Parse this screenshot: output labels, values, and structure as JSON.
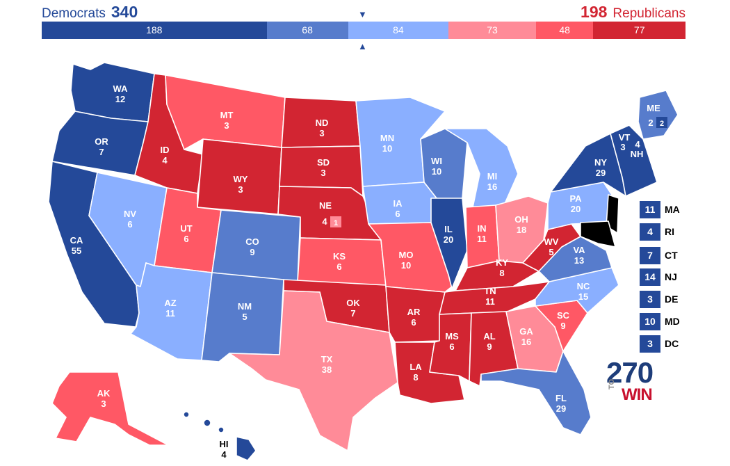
{
  "header": {
    "dem_name": "Democrats",
    "dem_total": "340",
    "rep_total": "198",
    "rep_name": "Republicans"
  },
  "colors": {
    "safe_d": "#244999",
    "likely_d": "#577ccc",
    "lean_d": "#8aafff",
    "lean_r": "#ff8b98",
    "likely_r": "#ff5865",
    "safe_r": "#d22532"
  },
  "bar": [
    {
      "label": "188",
      "value": 188,
      "category": "safe_d"
    },
    {
      "label": "68",
      "value": 68,
      "category": "likely_d"
    },
    {
      "label": "84",
      "value": 84,
      "category": "lean_d"
    },
    {
      "label": "73",
      "value": 73,
      "category": "lean_r"
    },
    {
      "label": "48",
      "value": 48,
      "category": "likely_r"
    },
    {
      "label": "77",
      "value": 77,
      "category": "safe_r"
    }
  ],
  "markers": {
    "down": "▼",
    "up": "▲"
  },
  "states": {
    "WA": {
      "abbr": "WA",
      "ev": "12",
      "category": "safe_d"
    },
    "OR": {
      "abbr": "OR",
      "ev": "7",
      "category": "safe_d"
    },
    "CA": {
      "abbr": "CA",
      "ev": "55",
      "category": "safe_d"
    },
    "NV": {
      "abbr": "NV",
      "ev": "6",
      "category": "lean_d"
    },
    "ID": {
      "abbr": "ID",
      "ev": "4",
      "category": "safe_r"
    },
    "MT": {
      "abbr": "MT",
      "ev": "3",
      "category": "likely_r"
    },
    "WY": {
      "abbr": "WY",
      "ev": "3",
      "category": "safe_r"
    },
    "UT": {
      "abbr": "UT",
      "ev": "6",
      "category": "likely_r"
    },
    "AZ": {
      "abbr": "AZ",
      "ev": "11",
      "category": "lean_d"
    },
    "CO": {
      "abbr": "CO",
      "ev": "9",
      "category": "likely_d"
    },
    "NM": {
      "abbr": "NM",
      "ev": "5",
      "category": "likely_d"
    },
    "ND": {
      "abbr": "ND",
      "ev": "3",
      "category": "safe_r"
    },
    "SD": {
      "abbr": "SD",
      "ev": "3",
      "category": "safe_r"
    },
    "NE": {
      "abbr": "NE",
      "ev": "4",
      "category": "safe_r",
      "district_ev": "1",
      "district_category": "lean_r"
    },
    "KS": {
      "abbr": "KS",
      "ev": "6",
      "category": "likely_r"
    },
    "OK": {
      "abbr": "OK",
      "ev": "7",
      "category": "safe_r"
    },
    "TX": {
      "abbr": "TX",
      "ev": "38",
      "category": "lean_r"
    },
    "MN": {
      "abbr": "MN",
      "ev": "10",
      "category": "lean_d"
    },
    "IA": {
      "abbr": "IA",
      "ev": "6",
      "category": "lean_d"
    },
    "MO": {
      "abbr": "MO",
      "ev": "10",
      "category": "likely_r"
    },
    "AR": {
      "abbr": "AR",
      "ev": "6",
      "category": "safe_r"
    },
    "LA": {
      "abbr": "LA",
      "ev": "8",
      "category": "safe_r"
    },
    "WI": {
      "abbr": "WI",
      "ev": "10",
      "category": "likely_d"
    },
    "IL": {
      "abbr": "IL",
      "ev": "20",
      "category": "safe_d"
    },
    "MI": {
      "abbr": "MI",
      "ev": "16",
      "category": "lean_d"
    },
    "IN": {
      "abbr": "IN",
      "ev": "11",
      "category": "likely_r"
    },
    "OH": {
      "abbr": "OH",
      "ev": "18",
      "category": "lean_r"
    },
    "KY": {
      "abbr": "KY",
      "ev": "8",
      "category": "safe_r"
    },
    "TN": {
      "abbr": "TN",
      "ev": "11",
      "category": "safe_r"
    },
    "MS": {
      "abbr": "MS",
      "ev": "6",
      "category": "safe_r"
    },
    "AL": {
      "abbr": "AL",
      "ev": "9",
      "category": "safe_r"
    },
    "GA": {
      "abbr": "GA",
      "ev": "16",
      "category": "lean_r"
    },
    "FL": {
      "abbr": "FL",
      "ev": "29",
      "category": "likely_d"
    },
    "SC": {
      "abbr": "SC",
      "ev": "9",
      "category": "likely_r"
    },
    "NC": {
      "abbr": "NC",
      "ev": "15",
      "category": "lean_d"
    },
    "VA": {
      "abbr": "VA",
      "ev": "13",
      "category": "likely_d"
    },
    "WV": {
      "abbr": "WV",
      "ev": "5",
      "category": "safe_r"
    },
    "PA": {
      "abbr": "PA",
      "ev": "20",
      "category": "lean_d"
    },
    "NY": {
      "abbr": "NY",
      "ev": "29",
      "category": "safe_d"
    },
    "VT": {
      "abbr": "VT",
      "ev": "3",
      "category": "safe_d"
    },
    "NH": {
      "abbr": "NH",
      "ev": "4",
      "category": "safe_d"
    },
    "ME": {
      "abbr": "ME",
      "ev": "2",
      "category": "likely_d",
      "district_ev": "2",
      "district_category": "safe_d"
    },
    "AK": {
      "abbr": "AK",
      "ev": "3",
      "category": "likely_r"
    },
    "HI": {
      "abbr": "HI",
      "ev": "4",
      "category": "safe_d"
    }
  },
  "small_states": [
    {
      "abbr": "MA",
      "ev": "11"
    },
    {
      "abbr": "RI",
      "ev": "4"
    },
    {
      "abbr": "CT",
      "ev": "7"
    },
    {
      "abbr": "NJ",
      "ev": "14"
    },
    {
      "abbr": "DE",
      "ev": "3"
    },
    {
      "abbr": "MD",
      "ev": "10"
    },
    {
      "abbr": "DC",
      "ev": "3"
    }
  ],
  "logo": {
    "number": "270",
    "to": "TO",
    "win": "WIN"
  }
}
